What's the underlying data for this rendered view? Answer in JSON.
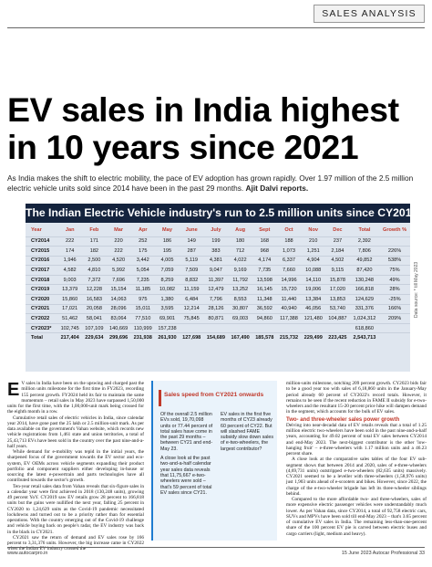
{
  "section": "SALES ANALYSIS",
  "headline": "EV sales in India highest in 10 years since 2021",
  "standfirst": "As India makes the shift to electric mobility, the pace of EV adoption has grown rapidly. Over 1.97 million of the 2.5 million electric vehicle units sold since 2014 have been in the past 29 months.",
  "author": "Ajit Dalvi reports.",
  "table": {
    "title": "The Indian Electric Vehicle industry's run to 2.5 million units since CY2014",
    "headers": [
      "Year",
      "Jan",
      "Feb",
      "Mar",
      "Apr",
      "May",
      "June",
      "July",
      "Aug",
      "Sept",
      "Oct",
      "Nov",
      "Dec",
      "Total",
      "Growth %"
    ],
    "rows": [
      [
        "CY2014",
        "222",
        "171",
        "220",
        "252",
        "186",
        "149",
        "199",
        "180",
        "168",
        "188",
        "210",
        "237",
        "2,392",
        ""
      ],
      [
        "CY2015",
        "174",
        "182",
        "222",
        "175",
        "195",
        "287",
        "383",
        "712",
        "968",
        "1,073",
        "1,251",
        "2,184",
        "7,806",
        "226%"
      ],
      [
        "CY2016",
        "1,946",
        "2,500",
        "4,520",
        "3,442",
        "4,005",
        "5,119",
        "4,381",
        "4,022",
        "4,174",
        "6,337",
        "4,904",
        "4,502",
        "49,852",
        "538%"
      ],
      [
        "CY2017",
        "4,582",
        "4,810",
        "5,992",
        "5,054",
        "7,059",
        "7,509",
        "9,047",
        "9,169",
        "7,735",
        "7,660",
        "10,088",
        "9,115",
        "87,420",
        "75%"
      ],
      [
        "CY2018",
        "9,003",
        "7,372",
        "7,696",
        "7,235",
        "8,259",
        "8,832",
        "11,397",
        "11,792",
        "13,598",
        "14,996",
        "14,110",
        "15,878",
        "130,248",
        "49%"
      ],
      [
        "CY2019",
        "13,379",
        "12,228",
        "15,154",
        "11,185",
        "10,082",
        "11,159",
        "12,479",
        "13,252",
        "16,145",
        "15,720",
        "19,006",
        "17,020",
        "166,818",
        "28%"
      ],
      [
        "CY2020",
        "15,860",
        "16,583",
        "14,063",
        "975",
        "1,380",
        "6,484",
        "7,796",
        "8,553",
        "11,348",
        "11,440",
        "13,384",
        "13,853",
        "124,629",
        "-25%"
      ],
      [
        "CY2021",
        "17,021",
        "20,058",
        "28,096",
        "15,011",
        "3,595",
        "12,214",
        "28,126",
        "30,807",
        "36,592",
        "40,940",
        "46,056",
        "53,740",
        "331,376",
        "166%"
      ],
      [
        "CY2022",
        "51,462",
        "58,041",
        "83,064",
        "77,510",
        "69,901",
        "75,845",
        "80,871",
        "69,003",
        "94,860",
        "117,388",
        "121,480",
        "104,887",
        "1,024,312",
        "209%"
      ],
      [
        "CY2023*",
        "102,745",
        "107,109",
        "140,669",
        "110,999",
        "157,238",
        "",
        "",
        "",
        "",
        "",
        "",
        "",
        "618,860",
        ""
      ],
      [
        "Total",
        "217,404",
        "229,634",
        "299,696",
        "231,938",
        "261,930",
        "127,698",
        "154,689",
        "167,490",
        "185,578",
        "215,732",
        "229,499",
        "223,425",
        "2,543,713",
        ""
      ]
    ],
    "credit": "Data source: * till May 2023"
  },
  "col1_paragraphs": [
    "V sales in India have been on the upswing and charged past the million units milestone for the first time in FY2023, recording 155 percent growth. FY2024 held its fair to maintain the same momentum – retail sales in May 2023 have surpassed 1,50,000 units for the first time, with the 1,00,000-unit mark being crossed for the eighth month in a row.",
    "Cumulative retail sales of electric vehicles in India, since calendar year 2014, have gone past the 25 lakh or 2.5 million-unit mark. As per data available on the government's Vahan website, which records new vehicle registrations from 1,461 state and union territories, a total of 25,43,713 EVs have been sold in the country over the past nine-and-a-half years.",
    "While demand for e-mobility was tepid in the initial years, the sharpened focus of the government towards the EV sector and eco-system, EV OEMs across vehicle segments expanding their product portfolio and component suppliers either developing in-house or sourcing the latest e-powertrain and parts technologies have all contributed towards the sector's growth.",
    "Ten-year retail sales data from Vahan reveals that six-figure sales in a calendar year were first achieved in 2018 (130,248 units), growing 49 percent YoY. CY2019 saw EV retails grow 28 percent to 166,818 units but the gains were nullified the next year, falling 25 percent in CY2020 to 1,24,629 units as the Covid-19 pandemic necessitated lockdowns and turned out to be a priority rather than for essential operations. With the country emerging out of the Covid-19 challenge and vehicle buying back on people's radar, the EV industry was back in the black in CY2021.",
    "CY2021 saw the return of demand and EV sales rose by 166 percent to 3,31,376 units. However, the big increase came in CY2022 when the Indian EV industry crossed the"
  ],
  "sidebar": {
    "title": "Sales speed from CY2021 onwards",
    "col1": "Of the overall 2.5 million EVs sold, 19,70,098 units or 77.44 percent of total sales have come in the past 29 months – between CY21 and end-May 23.",
    "col1b": "A close look at the past two-and-a-half calendar year sales data reveals that 11,75,667 e-two-wheelers were sold – that's 59 percent of total EV sales since CY21.",
    "col2": "EV sales in the first five months of CY23 already 60 percent of CY22. But will slashed FAME subsidy slow down sales of e-two-wheelers, the largest contributor?"
  },
  "col3_paragraphs": [
    "million-units milestone, notching 209 percent growth. CY2023 bids fair to be a good year too with sales of 6,18,860 units in the January-May period already 60 percent of CY2022's record totals. However, it remains to be seen if the recent reduction in FAME II subsidy for e-two-wheelers and the resultant 15-20 percent price hike will dampen demand in the segment, which accounts for the bulk of EV sales."
  ],
  "col3_heading": "Two- and three-wheeler sales power growth",
  "col3_paragraphs_b": [
    "Delving into near-decadal data of EV retails reveals that a total of 1.25 million electric two-wheelers have been sold in the past nine-and-a-half years, accounting for 49.02 percent of total EV sales between CY2014 and end-May 2023. The next-biggest contributor is the other 'low-hanging fruit' – e-three-wheelers with 1.17 million units and a 46.23 percent share.",
    "A close look at the comparative sales tables of the four EV sub-segment shows that between 2014 and 2020, sales of e-three-wheelers (4,69,731 units) outstripped e-two-wheelers (82,635 units) massively. CY2021 seemed to be a leveller with three-wheelers (1,58,976 units) just 1,903 units ahead of e-scooters and bikes. However, since 2022, the charge of the e-two-wheeler brigade has left its three-wheeler siblings behind.",
    "Compared to the more affordable two- and three-wheelers, sales of more expensive electric passenger vehicles were understandably much lower. As per Vahan data, since CY2014, a total of 92,758 electric cars, SUVs and MPVs have been sold till end-May 2023 – that's 3.65 percent of cumulative EV sales in India. The remaining less-than-one-percent share of the 100 percent EV pie is carved between electric buses and cargo carriers (light, medium and heavy)."
  ],
  "footer": {
    "left": "www.autocarpro.in",
    "right": "15 June 2023 Autocar Professional 33"
  }
}
